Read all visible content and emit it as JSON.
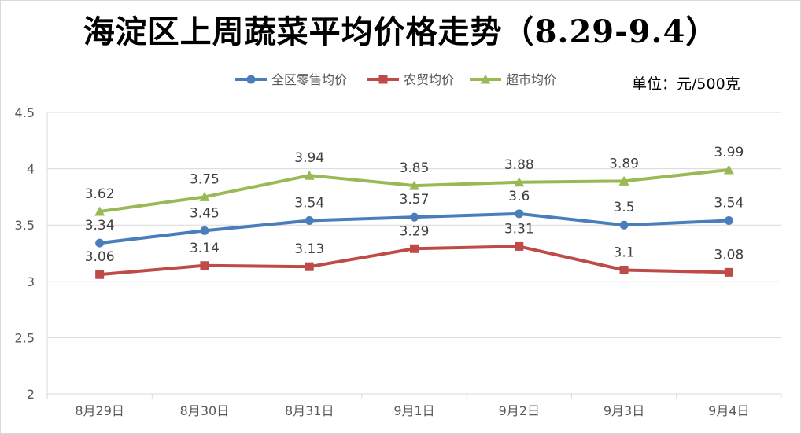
{
  "title": "海淀区上周蔬菜平均价格走势（8.29-9.4）",
  "unit_label": "单位：元/500克",
  "chart_data": {
    "type": "line",
    "title": "海淀区上周蔬菜平均价格走势（8.29-9.4）",
    "xlabel": "",
    "ylabel": "",
    "categories": [
      "8月29日",
      "8月30日",
      "8月31日",
      "9月1日",
      "9月2日",
      "9月3日",
      "9月4日"
    ],
    "ylim": [
      2,
      4.5
    ],
    "yticks": [
      "2",
      "2.5",
      "3",
      "3.5",
      "4",
      "4.5"
    ],
    "grid": true,
    "legend_position": "top",
    "series": [
      {
        "name": "全区零售均价",
        "color": "#4a7ebb",
        "marker": "circle",
        "values": [
          3.34,
          3.45,
          3.54,
          3.57,
          3.6,
          3.5,
          3.54
        ]
      },
      {
        "name": "农贸均价",
        "color": "#be4b48",
        "marker": "square",
        "values": [
          3.06,
          3.14,
          3.13,
          3.29,
          3.31,
          3.1,
          3.08
        ]
      },
      {
        "name": "超市均价",
        "color": "#98b954",
        "marker": "triangle",
        "values": [
          3.62,
          3.75,
          3.94,
          3.85,
          3.88,
          3.89,
          3.99
        ]
      }
    ]
  }
}
